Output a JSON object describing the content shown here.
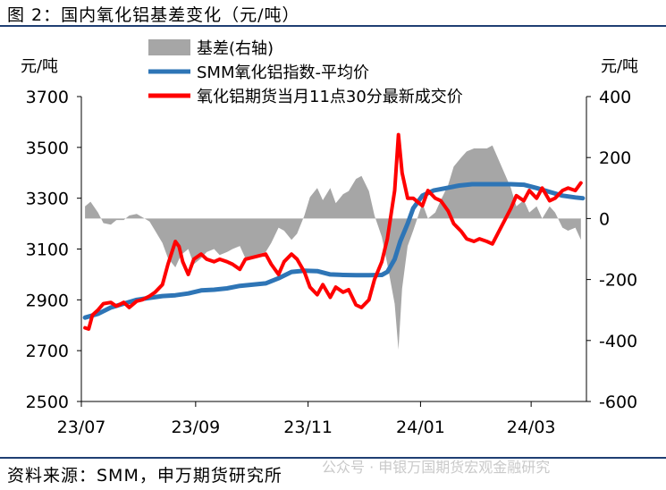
{
  "header": {
    "title": "图 2：国内氧化铝基差变化（元/吨）"
  },
  "footer": {
    "source": "资料来源：SMM，申万期货研究所",
    "watermark": "公众号 · 申银万国期货宏观金融研究"
  },
  "chart_data": {
    "type": "line",
    "title": "图 2：国内氧化铝基差变化（元/吨）",
    "left_unit": "元/吨",
    "right_unit": "元/吨",
    "ylim_left": [
      2500,
      3700
    ],
    "ylim_right": [
      -600,
      400
    ],
    "yticks_left": [
      "2500",
      "2700",
      "2900",
      "3100",
      "3300",
      "3500",
      "3700"
    ],
    "yticks_right": [
      "-600",
      "-400",
      "-200",
      "0",
      "200",
      "400"
    ],
    "x_range": [
      "2023-07-01",
      "2024-03-31"
    ],
    "x_ticks": [
      {
        "date": "2023-07-01",
        "label": "23/07"
      },
      {
        "date": "2023-09-01",
        "label": "23/09"
      },
      {
        "date": "2023-11-01",
        "label": "23/11"
      },
      {
        "date": "2024-01-01",
        "label": "24/01"
      },
      {
        "date": "2024-03-01",
        "label": "24/03"
      }
    ],
    "legend": [
      "基差(右轴)",
      "SMM氧化铝指数-平均价",
      "氧化铝期货当月11点30分最新成交价"
    ],
    "colors": {
      "basis": "#a6a6a6",
      "index": "#2e75b6",
      "futures": "#ff0000"
    },
    "series": [
      {
        "name": "基差(右轴)",
        "axis": "right",
        "type": "area",
        "points": [
          [
            "2023-07-03",
            40
          ],
          [
            "2023-07-06",
            55
          ],
          [
            "2023-07-10",
            20
          ],
          [
            "2023-07-13",
            -15
          ],
          [
            "2023-07-17",
            -20
          ],
          [
            "2023-07-20",
            -5
          ],
          [
            "2023-07-24",
            -5
          ],
          [
            "2023-07-27",
            10
          ],
          [
            "2023-07-31",
            15
          ],
          [
            "2023-08-03",
            5
          ],
          [
            "2023-08-07",
            -10
          ],
          [
            "2023-08-10",
            -40
          ],
          [
            "2023-08-14",
            -80
          ],
          [
            "2023-08-17",
            -130
          ],
          [
            "2023-08-21",
            -160
          ],
          [
            "2023-08-24",
            -120
          ],
          [
            "2023-08-28",
            -100
          ],
          [
            "2023-08-31",
            -150
          ],
          [
            "2023-09-04",
            -130
          ],
          [
            "2023-09-07",
            -110
          ],
          [
            "2023-09-11",
            -100
          ],
          [
            "2023-09-14",
            -120
          ],
          [
            "2023-09-18",
            -110
          ],
          [
            "2023-09-21",
            -100
          ],
          [
            "2023-09-25",
            -90
          ],
          [
            "2023-09-28",
            -130
          ],
          [
            "2023-10-09",
            -110
          ],
          [
            "2023-10-12",
            -80
          ],
          [
            "2023-10-16",
            -30
          ],
          [
            "2023-10-19",
            -40
          ],
          [
            "2023-10-23",
            -70
          ],
          [
            "2023-10-26",
            -50
          ],
          [
            "2023-10-30",
            10
          ],
          [
            "2023-11-02",
            70
          ],
          [
            "2023-11-06",
            100
          ],
          [
            "2023-11-09",
            60
          ],
          [
            "2023-11-13",
            100
          ],
          [
            "2023-11-16",
            50
          ],
          [
            "2023-11-20",
            80
          ],
          [
            "2023-11-23",
            90
          ],
          [
            "2023-11-27",
            130
          ],
          [
            "2023-11-30",
            140
          ],
          [
            "2023-12-04",
            90
          ],
          [
            "2023-12-07",
            10
          ],
          [
            "2023-12-11",
            -60
          ],
          [
            "2023-12-14",
            -150
          ],
          [
            "2023-12-18",
            -280
          ],
          [
            "2023-12-20",
            -430
          ],
          [
            "2023-12-22",
            -230
          ],
          [
            "2023-12-25",
            -90
          ],
          [
            "2023-12-28",
            -40
          ],
          [
            "2024-01-02",
            50
          ],
          [
            "2024-01-05",
            0
          ],
          [
            "2024-01-09",
            20
          ],
          [
            "2024-01-12",
            60
          ],
          [
            "2024-01-16",
            110
          ],
          [
            "2024-01-19",
            170
          ],
          [
            "2024-01-23",
            200
          ],
          [
            "2024-01-26",
            220
          ],
          [
            "2024-01-30",
            230
          ],
          [
            "2024-02-02",
            230
          ],
          [
            "2024-02-06",
            230
          ],
          [
            "2024-02-09",
            240
          ],
          [
            "2024-02-19",
            100
          ],
          [
            "2024-02-22",
            40
          ],
          [
            "2024-02-26",
            60
          ],
          [
            "2024-02-29",
            20
          ],
          [
            "2024-03-04",
            40
          ],
          [
            "2024-03-07",
            0
          ],
          [
            "2024-03-11",
            40
          ],
          [
            "2024-03-14",
            20
          ],
          [
            "2024-03-18",
            -30
          ],
          [
            "2024-03-21",
            -40
          ],
          [
            "2024-03-25",
            -30
          ],
          [
            "2024-03-28",
            -70
          ]
        ]
      },
      {
        "name": "SMM氧化铝指数-平均价",
        "axis": "left",
        "type": "line",
        "points": [
          [
            "2023-07-03",
            2830
          ],
          [
            "2023-07-10",
            2845
          ],
          [
            "2023-07-17",
            2870
          ],
          [
            "2023-07-24",
            2885
          ],
          [
            "2023-07-31",
            2900
          ],
          [
            "2023-08-07",
            2908
          ],
          [
            "2023-08-14",
            2915
          ],
          [
            "2023-08-21",
            2918
          ],
          [
            "2023-08-28",
            2925
          ],
          [
            "2023-09-04",
            2937
          ],
          [
            "2023-09-11",
            2940
          ],
          [
            "2023-09-18",
            2945
          ],
          [
            "2023-09-25",
            2955
          ],
          [
            "2023-10-09",
            2965
          ],
          [
            "2023-10-16",
            2985
          ],
          [
            "2023-10-23",
            3010
          ],
          [
            "2023-10-30",
            3015
          ],
          [
            "2023-11-06",
            3013
          ],
          [
            "2023-11-13",
            3000
          ],
          [
            "2023-11-20",
            2998
          ],
          [
            "2023-11-27",
            2997
          ],
          [
            "2023-12-04",
            2997
          ],
          [
            "2023-12-11",
            2998
          ],
          [
            "2023-12-14",
            3010
          ],
          [
            "2023-12-18",
            3060
          ],
          [
            "2023-12-21",
            3130
          ],
          [
            "2023-12-25",
            3200
          ],
          [
            "2023-12-28",
            3260
          ],
          [
            "2024-01-02",
            3310
          ],
          [
            "2024-01-08",
            3330
          ],
          [
            "2024-01-15",
            3340
          ],
          [
            "2024-01-22",
            3350
          ],
          [
            "2024-01-29",
            3355
          ],
          [
            "2024-02-05",
            3355
          ],
          [
            "2024-02-19",
            3355
          ],
          [
            "2024-02-26",
            3353
          ],
          [
            "2024-03-04",
            3340
          ],
          [
            "2024-03-11",
            3325
          ],
          [
            "2024-03-18",
            3310
          ],
          [
            "2024-03-25",
            3303
          ],
          [
            "2024-03-29",
            3300
          ]
        ]
      },
      {
        "name": "氧化铝期货当月11点30分最新成交价",
        "axis": "left",
        "type": "line",
        "points": [
          [
            "2023-07-03",
            2790
          ],
          [
            "2023-07-05",
            2785
          ],
          [
            "2023-07-07",
            2840
          ],
          [
            "2023-07-10",
            2860
          ],
          [
            "2023-07-13",
            2885
          ],
          [
            "2023-07-17",
            2890
          ],
          [
            "2023-07-20",
            2875
          ],
          [
            "2023-07-24",
            2890
          ],
          [
            "2023-07-27",
            2870
          ],
          [
            "2023-07-31",
            2895
          ],
          [
            "2023-08-03",
            2900
          ],
          [
            "2023-08-07",
            2915
          ],
          [
            "2023-08-10",
            2930
          ],
          [
            "2023-08-14",
            2960
          ],
          [
            "2023-08-17",
            3040
          ],
          [
            "2023-08-21",
            3130
          ],
          [
            "2023-08-23",
            3110
          ],
          [
            "2023-08-25",
            3050
          ],
          [
            "2023-08-28",
            3000
          ],
          [
            "2023-08-31",
            3060
          ],
          [
            "2023-09-04",
            3080
          ],
          [
            "2023-09-07",
            3060
          ],
          [
            "2023-09-11",
            3050
          ],
          [
            "2023-09-14",
            3060
          ],
          [
            "2023-09-18",
            3050
          ],
          [
            "2023-09-21",
            3040
          ],
          [
            "2023-09-25",
            3020
          ],
          [
            "2023-09-28",
            3060
          ],
          [
            "2023-10-09",
            3080
          ],
          [
            "2023-10-12",
            3040
          ],
          [
            "2023-10-16",
            3000
          ],
          [
            "2023-10-19",
            3050
          ],
          [
            "2023-10-23",
            3080
          ],
          [
            "2023-10-26",
            3060
          ],
          [
            "2023-10-30",
            3010
          ],
          [
            "2023-11-02",
            2950
          ],
          [
            "2023-11-06",
            2920
          ],
          [
            "2023-11-09",
            2960
          ],
          [
            "2023-11-13",
            2910
          ],
          [
            "2023-11-16",
            2950
          ],
          [
            "2023-11-20",
            2930
          ],
          [
            "2023-11-23",
            2940
          ],
          [
            "2023-11-27",
            2880
          ],
          [
            "2023-11-30",
            2870
          ],
          [
            "2023-12-04",
            2900
          ],
          [
            "2023-12-07",
            2980
          ],
          [
            "2023-12-11",
            3050
          ],
          [
            "2023-12-14",
            3140
          ],
          [
            "2023-12-18",
            3330
          ],
          [
            "2023-12-20",
            3550
          ],
          [
            "2023-12-22",
            3400
          ],
          [
            "2023-12-25",
            3300
          ],
          [
            "2023-12-28",
            3300
          ],
          [
            "2024-01-02",
            3270
          ],
          [
            "2024-01-05",
            3330
          ],
          [
            "2024-01-09",
            3300
          ],
          [
            "2024-01-12",
            3290
          ],
          [
            "2024-01-16",
            3250
          ],
          [
            "2024-01-19",
            3200
          ],
          [
            "2024-01-23",
            3170
          ],
          [
            "2024-01-26",
            3140
          ],
          [
            "2024-01-30",
            3130
          ],
          [
            "2024-02-02",
            3140
          ],
          [
            "2024-02-06",
            3130
          ],
          [
            "2024-02-09",
            3120
          ],
          [
            "2024-02-19",
            3260
          ],
          [
            "2024-02-22",
            3310
          ],
          [
            "2024-02-26",
            3290
          ],
          [
            "2024-02-29",
            3330
          ],
          [
            "2024-03-04",
            3300
          ],
          [
            "2024-03-07",
            3340
          ],
          [
            "2024-03-11",
            3290
          ],
          [
            "2024-03-14",
            3300
          ],
          [
            "2024-03-18",
            3330
          ],
          [
            "2024-03-21",
            3340
          ],
          [
            "2024-03-25",
            3330
          ],
          [
            "2024-03-28",
            3360
          ]
        ]
      }
    ]
  }
}
